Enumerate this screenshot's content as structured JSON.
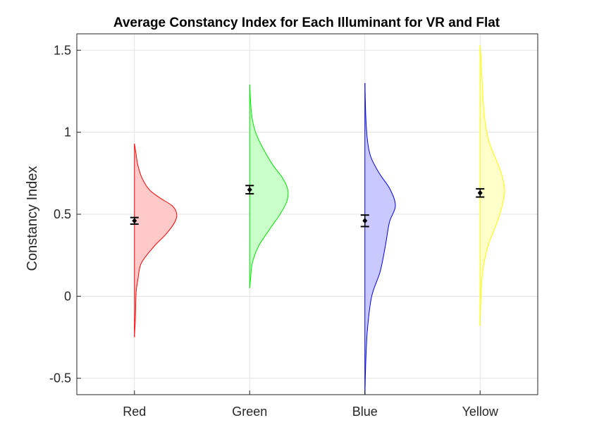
{
  "chart_data": {
    "type": "violin",
    "title": "Average Constancy Index for Each Illuminant for VR and Flat",
    "xlabel": "",
    "ylabel": "Constancy Index",
    "categories": [
      "Red",
      "Green",
      "Blue",
      "Yellow"
    ],
    "ylim": [
      -0.6,
      1.6
    ],
    "yticks": [
      -0.5,
      0,
      0.5,
      1,
      1.5
    ],
    "ytick_labels": [
      "-0.5",
      "0",
      "0.5",
      "1",
      "1.5"
    ],
    "grid": true,
    "series": [
      {
        "category": "Red",
        "color": "#ff0000",
        "fill": "#ffc9c9",
        "mean": 0.46,
        "error": 0.02,
        "density": [
          [
            -0.25,
            0.0
          ],
          [
            -0.15,
            0.02
          ],
          [
            -0.05,
            0.03
          ],
          [
            0.03,
            0.04
          ],
          [
            0.1,
            0.08
          ],
          [
            0.2,
            0.16
          ],
          [
            0.3,
            0.45
          ],
          [
            0.38,
            0.75
          ],
          [
            0.45,
            0.95
          ],
          [
            0.5,
            1.0
          ],
          [
            0.55,
            0.9
          ],
          [
            0.6,
            0.6
          ],
          [
            0.65,
            0.35
          ],
          [
            0.72,
            0.18
          ],
          [
            0.8,
            0.08
          ],
          [
            0.88,
            0.03
          ],
          [
            0.93,
            0.0
          ]
        ]
      },
      {
        "category": "Green",
        "color": "#00e600",
        "fill": "#c9ffc9",
        "mean": 0.65,
        "error": 0.025,
        "density": [
          [
            0.05,
            0.0
          ],
          [
            0.1,
            0.02
          ],
          [
            0.2,
            0.06
          ],
          [
            0.3,
            0.2
          ],
          [
            0.4,
            0.45
          ],
          [
            0.5,
            0.72
          ],
          [
            0.58,
            0.88
          ],
          [
            0.65,
            0.9
          ],
          [
            0.72,
            0.78
          ],
          [
            0.8,
            0.55
          ],
          [
            0.9,
            0.32
          ],
          [
            1.0,
            0.14
          ],
          [
            1.1,
            0.05
          ],
          [
            1.2,
            0.02
          ],
          [
            1.29,
            0.0
          ]
        ]
      },
      {
        "category": "Blue",
        "color": "#0000e6",
        "fill": "#c9c9ff",
        "mean": 0.46,
        "error": 0.035,
        "density": [
          [
            -0.6,
            0.0
          ],
          [
            -0.4,
            0.02
          ],
          [
            -0.2,
            0.06
          ],
          [
            0.0,
            0.16
          ],
          [
            0.15,
            0.36
          ],
          [
            0.3,
            0.48
          ],
          [
            0.45,
            0.58
          ],
          [
            0.55,
            0.72
          ],
          [
            0.65,
            0.6
          ],
          [
            0.75,
            0.34
          ],
          [
            0.85,
            0.14
          ],
          [
            0.95,
            0.06
          ],
          [
            1.1,
            0.02
          ],
          [
            1.3,
            0.0
          ]
        ]
      },
      {
        "category": "Yellow",
        "color": "#ffff00",
        "fill": "#ffffc9",
        "mean": 0.63,
        "error": 0.025,
        "density": [
          [
            -0.18,
            0.0
          ],
          [
            0.0,
            0.02
          ],
          [
            0.15,
            0.06
          ],
          [
            0.3,
            0.18
          ],
          [
            0.45,
            0.4
          ],
          [
            0.55,
            0.52
          ],
          [
            0.65,
            0.58
          ],
          [
            0.75,
            0.5
          ],
          [
            0.85,
            0.35
          ],
          [
            0.95,
            0.2
          ],
          [
            1.1,
            0.1
          ],
          [
            1.3,
            0.05
          ],
          [
            1.45,
            0.02
          ],
          [
            1.53,
            0.0
          ]
        ]
      }
    ]
  }
}
